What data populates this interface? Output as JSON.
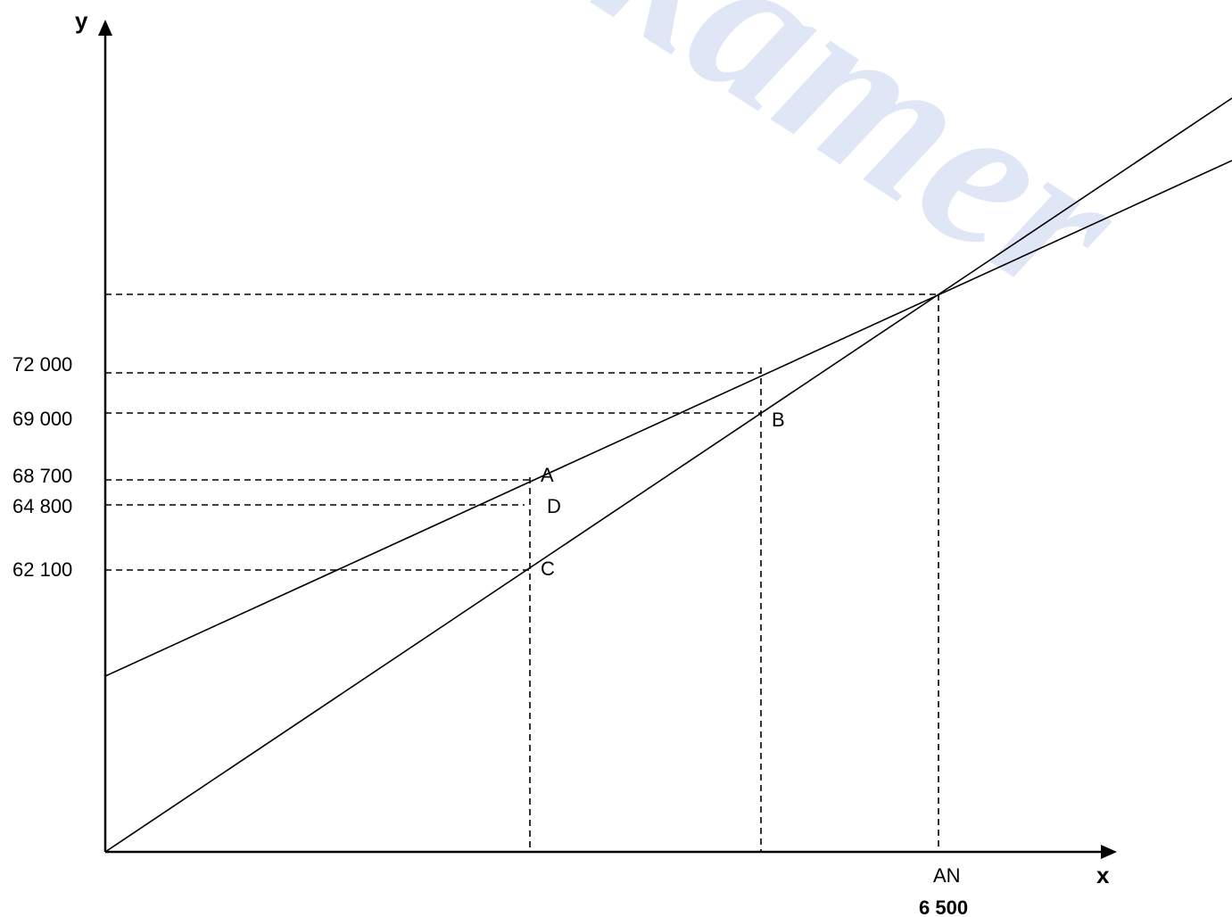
{
  "chart_data": {
    "type": "line",
    "axis_labels": {
      "x": "x",
      "y": "y"
    },
    "y_tick_labels": [
      "72 000",
      "69 000",
      "68 700",
      "64 800",
      "62 100"
    ],
    "x_tick_labels": {
      "name": "AN",
      "value": "6 500"
    },
    "points": [
      {
        "label": "A"
      },
      {
        "label": "B"
      },
      {
        "label": "C"
      },
      {
        "label": "D"
      }
    ],
    "lines": [
      {
        "kind": "line-through-origin"
      },
      {
        "kind": "line-with-positive-intercept"
      }
    ],
    "grid": false
  },
  "watermark_text": "akamer",
  "colors": {
    "line": "#000000",
    "watermark": "#dfe6f6"
  }
}
